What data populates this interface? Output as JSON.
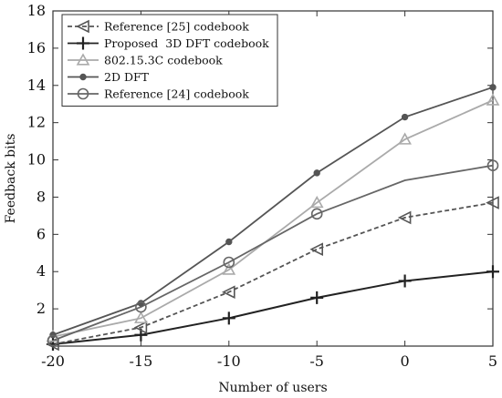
{
  "chart_data": {
    "type": "line",
    "xlabel": "Number of users",
    "ylabel": "Feedback bits",
    "xlim": [
      -20,
      5
    ],
    "ylim": [
      0,
      18
    ],
    "xticks": [
      -20,
      -15,
      -10,
      -5,
      0,
      5
    ],
    "yticks": [
      2,
      4,
      6,
      8,
      10,
      12,
      14,
      16,
      18
    ],
    "grid": false,
    "legend_position": "top-left",
    "x": [
      -20,
      -15,
      -10,
      -5,
      0,
      5
    ],
    "series": [
      {
        "name": "Reference [25] codebook",
        "values": [
          0.1,
          1.0,
          2.9,
          5.2,
          6.9,
          7.7
        ],
        "color": "#555555",
        "marker": "triangle-left",
        "dash": "dashed"
      },
      {
        "name": "Proposed  3D DFT codebook",
        "values": [
          0.1,
          0.6,
          1.5,
          2.6,
          3.5,
          4.0
        ],
        "color": "#222222",
        "marker": "plus",
        "dash": "solid"
      },
      {
        "name": "802.15.3C codebook",
        "values": [
          0.5,
          1.5,
          4.1,
          7.7,
          11.1,
          13.2
        ],
        "color": "#aaaaaa",
        "marker": "triangle-up",
        "dash": "solid"
      },
      {
        "name": "2D DFT",
        "values": [
          0.6,
          2.3,
          5.6,
          9.3,
          12.3,
          13.9
        ],
        "color": "#555555",
        "marker": "dot",
        "dash": "solid"
      },
      {
        "name": "Reference [24] codebook",
        "values": [
          0.3,
          2.1,
          4.5,
          7.1,
          null,
          9.7
        ],
        "color": "#666666",
        "marker": "circle",
        "dash": "solid"
      }
    ],
    "unmarked_points": [
      {
        "series": "Reference [24] codebook",
        "x": 0,
        "y": 8.9
      }
    ]
  }
}
